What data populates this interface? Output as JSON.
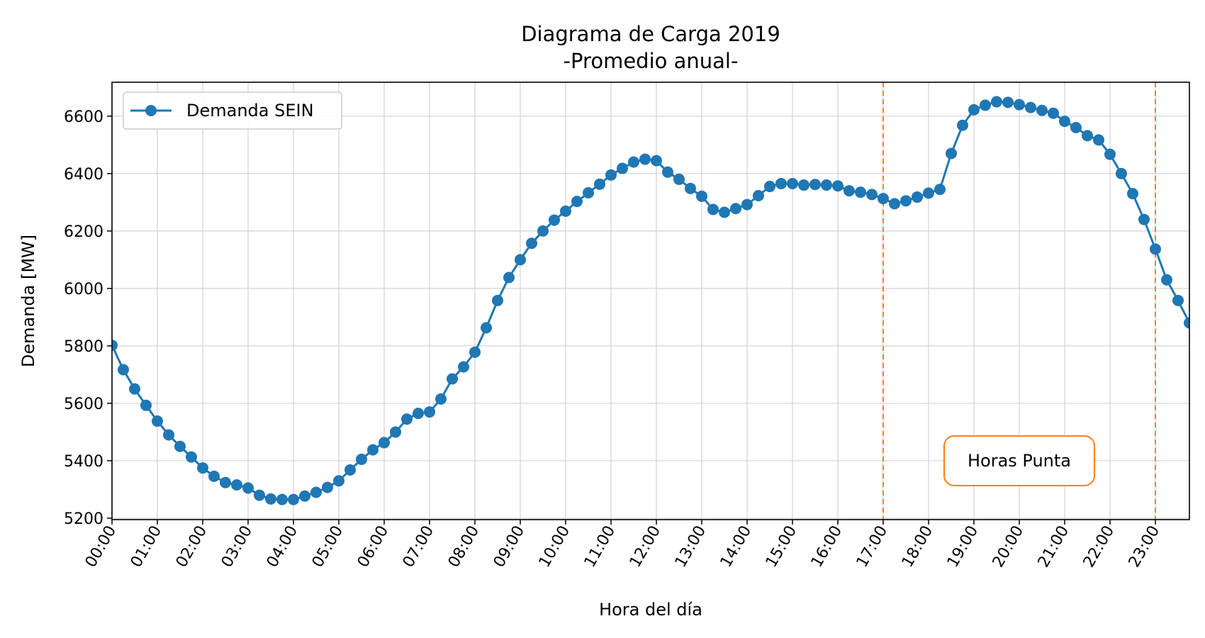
{
  "chart_data": {
    "type": "line",
    "title": "Diagrama de Carga 2019",
    "subtitle": "-Promedio anual-",
    "xlabel": "Hora del día",
    "ylabel": "Demanda [MW]",
    "ylim": [
      5195,
      6718
    ],
    "xlim": [
      0,
      95
    ],
    "x_step_minutes": 15,
    "yticks": [
      5200,
      5400,
      5600,
      5800,
      6000,
      6200,
      6400,
      6600
    ],
    "xtick_labels": [
      "00:00",
      "01:00",
      "02:00",
      "03:00",
      "04:00",
      "05:00",
      "06:00",
      "07:00",
      "08:00",
      "09:00",
      "10:00",
      "11:00",
      "12:00",
      "13:00",
      "14:00",
      "15:00",
      "16:00",
      "17:00",
      "18:00",
      "19:00",
      "20:00",
      "21:00",
      "22:00",
      "23:00"
    ],
    "grid": true,
    "legend_position": "top-left",
    "series": [
      {
        "name": "Demanda SEIN",
        "color": "#1f77b4",
        "marker": "circle",
        "values": [
          5802,
          5717,
          5650,
          5593,
          5538,
          5490,
          5450,
          5413,
          5375,
          5346,
          5324,
          5316,
          5305,
          5280,
          5267,
          5265,
          5265,
          5277,
          5290,
          5307,
          5330,
          5368,
          5405,
          5438,
          5463,
          5500,
          5545,
          5565,
          5570,
          5615,
          5685,
          5727,
          5778,
          5863,
          5958,
          6038,
          6100,
          6157,
          6200,
          6238,
          6269,
          6303,
          6333,
          6363,
          6395,
          6418,
          6440,
          6450,
          6445,
          6405,
          6380,
          6348,
          6321,
          6275,
          6265,
          6278,
          6292,
          6323,
          6355,
          6365,
          6365,
          6360,
          6362,
          6360,
          6357,
          6340,
          6335,
          6327,
          6313,
          6295,
          6305,
          6318,
          6332,
          6345,
          6470,
          6568,
          6622,
          6638,
          6650,
          6648,
          6640,
          6630,
          6620,
          6610,
          6582,
          6560,
          6532,
          6517,
          6467,
          6400,
          6330,
          6240,
          6137,
          6030,
          5958,
          5880
        ]
      }
    ],
    "vlines": [
      {
        "x": 68,
        "color": "#ff7f0e",
        "style": "dashed"
      },
      {
        "x": 92,
        "color": "#ff7f0e",
        "style": "dashed"
      }
    ],
    "annotations": [
      {
        "text": "Horas Punta",
        "x": 80,
        "y": 5400,
        "border_color": "#ff7f0e"
      }
    ]
  }
}
